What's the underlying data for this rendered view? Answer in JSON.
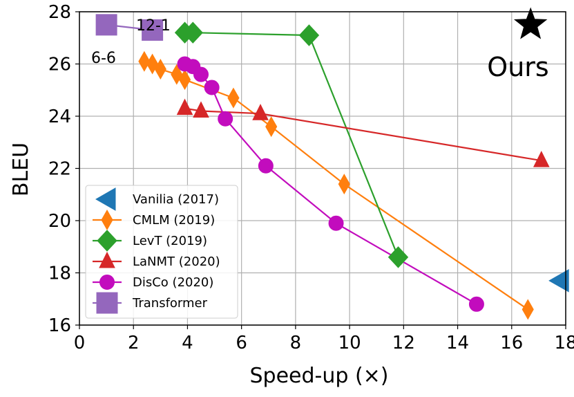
{
  "chart_data": {
    "type": "line",
    "title": "",
    "xlabel": "Speed-up (×)",
    "ylabel": "BLEU",
    "xlim": [
      0,
      18
    ],
    "ylim": [
      16,
      28
    ],
    "xticks": [
      "0",
      "2",
      "4",
      "6",
      "8",
      "10",
      "12",
      "14",
      "16",
      "18"
    ],
    "yticks": [
      "16",
      "18",
      "20",
      "22",
      "24",
      "26",
      "28"
    ],
    "grid": true,
    "legend_position": "lower-left",
    "series": [
      {
        "name": "Vanilia (2017)",
        "marker": "triangle-left",
        "color": "#1f77b4",
        "line": false,
        "points": [
          [
            17.8,
            17.7
          ]
        ]
      },
      {
        "name": "CMLM (2019)",
        "marker": "thin-diamond",
        "color": "#ff7f0e",
        "line": true,
        "points": [
          [
            2.4,
            26.1
          ],
          [
            2.7,
            26.0
          ],
          [
            3.0,
            25.8
          ],
          [
            3.6,
            25.6
          ],
          [
            3.9,
            25.4
          ],
          [
            5.7,
            24.7
          ],
          [
            7.1,
            23.6
          ],
          [
            9.8,
            21.4
          ],
          [
            16.6,
            16.6
          ]
        ]
      },
      {
        "name": "LevT (2019)",
        "marker": "diamond",
        "color": "#2ca02c",
        "line": true,
        "points": [
          [
            3.9,
            27.2
          ],
          [
            4.2,
            27.2
          ],
          [
            8.5,
            27.1
          ],
          [
            11.8,
            18.6
          ]
        ]
      },
      {
        "name": "LaNMT (2020)",
        "marker": "triangle-up",
        "color": "#d62728",
        "line": true,
        "points": [
          [
            3.9,
            24.3
          ],
          [
            4.5,
            24.2
          ],
          [
            6.7,
            24.1
          ],
          [
            17.1,
            22.3
          ]
        ]
      },
      {
        "name": "DisCo (2020)",
        "marker": "circle",
        "color": "#c20cbd",
        "line": true,
        "points": [
          [
            3.9,
            26.0
          ],
          [
            4.2,
            25.9
          ],
          [
            4.5,
            25.6
          ],
          [
            4.9,
            25.1
          ],
          [
            5.4,
            23.9
          ],
          [
            6.9,
            22.1
          ],
          [
            9.5,
            19.9
          ],
          [
            14.7,
            16.8
          ]
        ]
      },
      {
        "name": "Transformer",
        "marker": "square",
        "color": "#9467bd",
        "line": true,
        "points": [
          [
            1.0,
            27.5
          ],
          [
            2.7,
            27.3
          ]
        ]
      }
    ],
    "ours": {
      "label": "Ours",
      "x": 16.7,
      "y": 27.5,
      "marker": "star",
      "color": "#000000"
    },
    "annotations": [
      {
        "text": "12-1",
        "series": "Transformer",
        "point": 1
      },
      {
        "text": "6-6",
        "series": "Transformer",
        "point": 0
      }
    ]
  }
}
